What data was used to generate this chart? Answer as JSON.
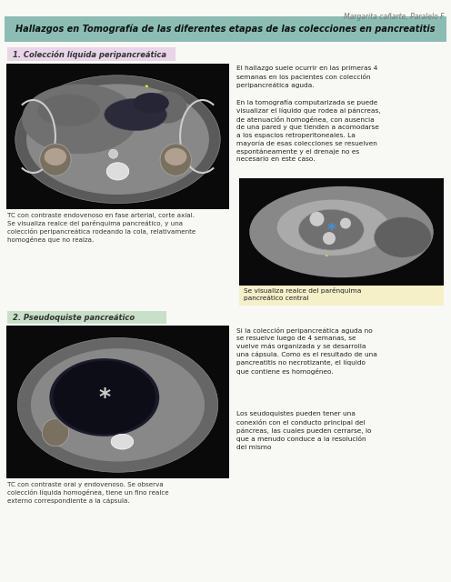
{
  "page_bg": "#f8f8f4",
  "header_bg": "#8bbdb5",
  "header_text": "Hallazgos en Tomografía de las diferentes etapas de las colecciones en pancreatitis",
  "header_text_color": "#1a1a1a",
  "watermark": "Margarita cañarte, Paralelo F",
  "section1_bg": "#e8d5e8",
  "section1_title": "1. Colección líquida peripancreática",
  "section2_bg": "#c8e0c8",
  "section2_title": "2. Pseudoquiste pancreático",
  "section1_caption_left": "TC con contraste endovenoso en fase arterial, corte axial.\nSe visualiza realce del parénquima pancreático, y una\ncolección peripancreática rodeando la cola, relativamente\nhomogénea que no realza.",
  "section1_caption_right": "Se visualiza realce del parénquima\npancreático central",
  "section1_caption_right_bg": "#f5f0c8",
  "section1_text_p1": "El hallazgo suele ocurrir en las primeras 4\nsemanas en los pacientes con colección\nperipancreática aguda.",
  "section1_text_p2": "En la tomografía computarizada se puede\nvisualizar el líquido que rodea al páncreas,\nde atenuación homogénea, con ausencia\nde una pared y que tienden a acomodarse\na los espacios retroperitoneales. La\nmayoría de esas colecciones se resuelven\nespontáneamente y el drenaje no es\nnecesario en este caso.",
  "section2_caption_left": "TC con contraste oral y endovenoso. Se observa\ncolección líquida homogénea, tiene un fino realce\nexterno correspondiente a la cápsula.",
  "section2_text_p1": "Si la colección peripancreática aguda no\nse resuelve luego de 4 semanas, se\nvuelve más organizada y se desarrolla\nuna cápsula. Como es el resultado de una\npancreatitis no necrotizante, el líquido\nque contiene es homogéneo.",
  "section2_text_p2": "Los seudoquistes pueden tener una\nconexión con el conducto principal del\npáncreas, las cuales pueden cerrarse, lo\nque a menudo conduce a la resolución\ndel mismo",
  "img_arrow_color": "#ffff00",
  "ct1_bg": "#111111",
  "ct2_bg": "#111111",
  "ct_small_bg": "#111111"
}
